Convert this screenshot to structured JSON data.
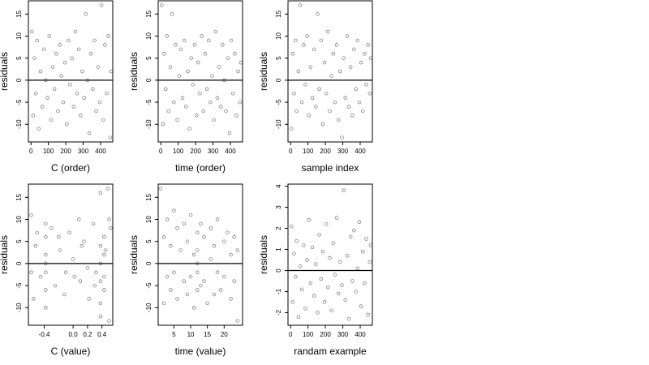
{
  "chart_data": [
    {
      "type": "scatter",
      "xlabel": "C (order)",
      "ylabel": "residuals",
      "xlim": [
        -15,
        470
      ],
      "ylim": [
        -14,
        18
      ],
      "xticks": [
        0,
        100,
        200,
        300,
        400
      ],
      "yticks": [
        -10,
        -5,
        0,
        5,
        10,
        15
      ],
      "reference_line_y": 0,
      "points": {
        "x": [
          5,
          12,
          20,
          28,
          35,
          45,
          55,
          65,
          75,
          85,
          95,
          105,
          115,
          125,
          135,
          145,
          155,
          165,
          175,
          185,
          195,
          205,
          215,
          225,
          235,
          245,
          255,
          265,
          275,
          285,
          295,
          305,
          315,
          325,
          335,
          345,
          355,
          365,
          375,
          385,
          395,
          405,
          415,
          425,
          435,
          445,
          455,
          460
        ],
        "y": [
          11,
          -8,
          5,
          -3,
          9,
          -11,
          2,
          -6,
          7,
          0,
          -4,
          10,
          -9,
          3,
          -2,
          6,
          -7,
          8,
          1,
          -5,
          4,
          -10,
          9,
          -1,
          5,
          -6,
          11,
          -3,
          7,
          -8,
          2,
          -4,
          15,
          0,
          -12,
          6,
          -2,
          9,
          -7,
          3,
          -5,
          17,
          -9,
          8,
          -3,
          10,
          -13,
          2
        ]
      }
    },
    {
      "type": "scatter",
      "xlabel": "time (order)",
      "ylabel": "residuals",
      "xlim": [
        -15,
        470
      ],
      "ylim": [
        -14,
        18
      ],
      "xticks": [
        0,
        100,
        200,
        300,
        400
      ],
      "yticks": [
        -10,
        -5,
        0,
        5,
        10,
        15
      ],
      "reference_line_y": 0,
      "points": {
        "x": [
          5,
          12,
          20,
          28,
          35,
          45,
          55,
          65,
          75,
          85,
          95,
          105,
          115,
          125,
          135,
          145,
          155,
          165,
          175,
          185,
          195,
          205,
          215,
          225,
          235,
          245,
          255,
          265,
          275,
          285,
          295,
          305,
          315,
          325,
          335,
          345,
          355,
          365,
          375,
          385,
          395,
          405,
          415,
          425,
          435,
          445,
          455,
          460
        ],
        "y": [
          17,
          -10,
          6,
          -2,
          10,
          -7,
          3,
          15,
          -5,
          8,
          -9,
          1,
          7,
          -4,
          9,
          -6,
          2,
          -11,
          5,
          -1,
          8,
          -8,
          4,
          -3,
          10,
          -7,
          6,
          -2,
          9,
          -5,
          1,
          -9,
          11,
          -4,
          3,
          -6,
          8,
          0,
          -7,
          5,
          -12,
          9,
          -3,
          6,
          -8,
          2,
          -5,
          4
        ]
      }
    },
    {
      "type": "scatter",
      "xlabel": "sample index",
      "ylabel": "residuals",
      "xlim": [
        -15,
        470
      ],
      "ylim": [
        -14,
        18
      ],
      "xticks": [
        0,
        100,
        200,
        300,
        400
      ],
      "yticks": [
        -10,
        -5,
        0,
        5,
        10,
        15
      ],
      "reference_line_y": 0,
      "points": {
        "x": [
          5,
          12,
          20,
          28,
          35,
          45,
          55,
          65,
          75,
          85,
          95,
          105,
          115,
          125,
          135,
          145,
          155,
          165,
          175,
          185,
          195,
          205,
          215,
          225,
          235,
          245,
          255,
          265,
          275,
          285,
          295,
          305,
          315,
          325,
          335,
          345,
          355,
          365,
          375,
          385,
          395,
          405,
          415,
          425,
          435,
          445,
          455,
          460
        ],
        "y": [
          -11,
          6,
          -3,
          9,
          -7,
          2,
          17,
          -5,
          8,
          -1,
          10,
          -8,
          3,
          -4,
          7,
          -6,
          15,
          -2,
          9,
          -10,
          4,
          -3,
          11,
          -7,
          1,
          6,
          -5,
          8,
          -9,
          2,
          -13,
          5,
          -4,
          10,
          -6,
          3,
          -8,
          7,
          -2,
          9,
          -5,
          4,
          -7,
          6,
          -1,
          8,
          -3,
          5
        ]
      }
    },
    {
      "type": "scatter",
      "xlabel": "C (value)",
      "ylabel": "residuals",
      "xlim": [
        -0.62,
        0.55
      ],
      "ylim": [
        -14,
        18
      ],
      "xticks": [
        -0.4,
        0.0,
        0.2,
        0.4
      ],
      "xticklabels": [
        "-0.4",
        "0.0",
        "0.2",
        "0.4"
      ],
      "yticks": [
        -10,
        -5,
        0,
        5,
        10,
        15
      ],
      "reference_line_y": 0,
      "points": {
        "x": [
          -0.58,
          -0.55,
          -0.52,
          -0.45,
          -0.38,
          -0.38,
          -0.38,
          -0.38,
          -0.38,
          -0.3,
          -0.25,
          -0.18,
          -0.12,
          -0.05,
          0.02,
          0.08,
          0.1,
          0.15,
          0.22,
          0.28,
          0.32,
          0.38,
          0.38,
          0.38,
          0.38,
          0.38,
          0.43,
          0.43,
          0.43,
          0.48,
          0.5,
          0.52,
          -0.58,
          -0.5,
          -0.38,
          -0.38,
          0.0,
          0.2,
          0.38,
          0.45,
          0.43,
          0.5,
          -0.2,
          0.3,
          -0.1,
          0.12
        ],
        "y": [
          11,
          -8,
          4,
          -3,
          9,
          -6,
          2,
          -2,
          6,
          8,
          -5,
          3,
          -7,
          7,
          -3,
          10,
          -4,
          5,
          -8,
          9,
          -2,
          16,
          -9,
          4,
          -4,
          0,
          6,
          -6,
          2,
          17,
          -13,
          8,
          -2,
          7,
          0,
          -10,
          1,
          -1,
          -12,
          3,
          -3,
          10,
          6,
          -5,
          -2,
          4
        ]
      }
    },
    {
      "type": "scatter",
      "xlabel": "time (value)",
      "ylabel": "residuals",
      "xlim": [
        0.3,
        25.5
      ],
      "ylim": [
        -14,
        18
      ],
      "xticks": [
        5,
        10,
        15,
        20
      ],
      "yticks": [
        -10,
        -5,
        0,
        5,
        10,
        15
      ],
      "reference_line_y": 0,
      "points": {
        "x": [
          1,
          2,
          2,
          3,
          3,
          4,
          4,
          5,
          5,
          6,
          6,
          7,
          8,
          8,
          9,
          9,
          10,
          10,
          11,
          11,
          12,
          12,
          12,
          12,
          12,
          13,
          13,
          14,
          14,
          15,
          16,
          16,
          17,
          17,
          18,
          18,
          19,
          20,
          20,
          21,
          22,
          22,
          23,
          23,
          24,
          24
        ],
        "y": [
          17,
          -9,
          6,
          -3,
          10,
          -6,
          4,
          12,
          -2,
          8,
          -8,
          3,
          -4,
          9,
          -7,
          5,
          -3,
          11,
          -10,
          2,
          -6,
          0,
          3,
          -2,
          7,
          -5,
          9,
          -4,
          6,
          -9,
          1,
          8,
          -7,
          4,
          -2,
          10,
          -6,
          5,
          -3,
          7,
          -8,
          2,
          -4,
          6,
          -13,
          3
        ]
      }
    },
    {
      "type": "scatter",
      "xlabel": "randam example",
      "ylabel": "residuals",
      "xlim": [
        -15,
        470
      ],
      "ylim": [
        -2.6,
        4.1
      ],
      "xticks": [
        0,
        100,
        200,
        300,
        400
      ],
      "yticks": [
        -2,
        -1,
        0,
        1,
        2,
        3,
        4
      ],
      "reference_line_y": 0,
      "points": {
        "x": [
          5,
          12,
          20,
          28,
          35,
          45,
          55,
          65,
          75,
          85,
          95,
          105,
          115,
          125,
          135,
          145,
          155,
          165,
          175,
          185,
          195,
          205,
          215,
          225,
          235,
          245,
          255,
          265,
          275,
          285,
          295,
          305,
          315,
          325,
          335,
          345,
          355,
          365,
          375,
          385,
          395,
          405,
          415,
          425,
          435,
          445,
          455,
          460
        ],
        "y": [
          2.1,
          -1.5,
          0.8,
          -0.3,
          1.4,
          -2.2,
          0.2,
          -0.9,
          1.2,
          -1.8,
          0.5,
          2.4,
          -0.6,
          1.1,
          -1.2,
          0.3,
          -2.0,
          1.7,
          -0.4,
          0.9,
          -1.5,
          2.2,
          -0.8,
          0.6,
          -1.9,
          1.3,
          -0.2,
          2.5,
          -1.1,
          0.4,
          -0.7,
          3.8,
          -1.4,
          0.7,
          -2.3,
          1.6,
          -0.5,
          1.9,
          -1.0,
          0.1,
          2.3,
          -1.7,
          0.9,
          -0.6,
          1.5,
          -2.1,
          0.4,
          1.2
        ]
      }
    }
  ]
}
